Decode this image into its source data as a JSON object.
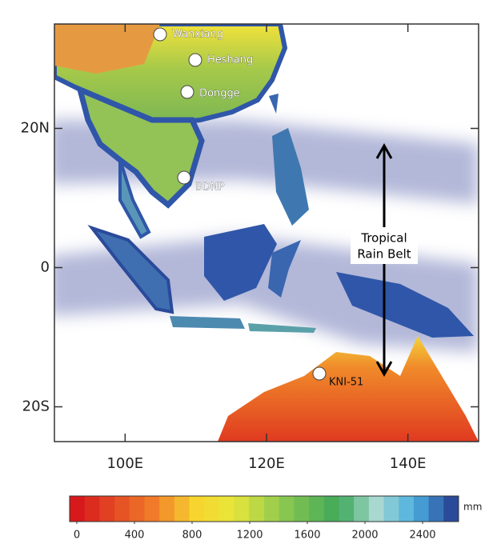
{
  "map": {
    "lon_range": [
      90,
      150
    ],
    "lat_range": [
      -25,
      35
    ],
    "lon_ticks": [
      {
        "value": 100,
        "label": "100E"
      },
      {
        "value": 120,
        "label": "120E"
      },
      {
        "value": 140,
        "label": "140E"
      }
    ],
    "lat_ticks": [
      {
        "value": 20,
        "label": "20N"
      },
      0,
      {
        "value": -20,
        "label": "20S"
      }
    ],
    "sites": [
      "Wanxiang",
      "Heshang",
      "Dongge",
      "BDNP",
      "KNI-51"
    ],
    "rain_belt_label": [
      "Tropical",
      "Rain Belt"
    ]
  },
  "colorbar": {
    "range": [
      -50,
      2650
    ],
    "ticks": [
      0,
      400,
      800,
      1200,
      1600,
      2000,
      2400
    ],
    "unit": "mm"
  }
}
